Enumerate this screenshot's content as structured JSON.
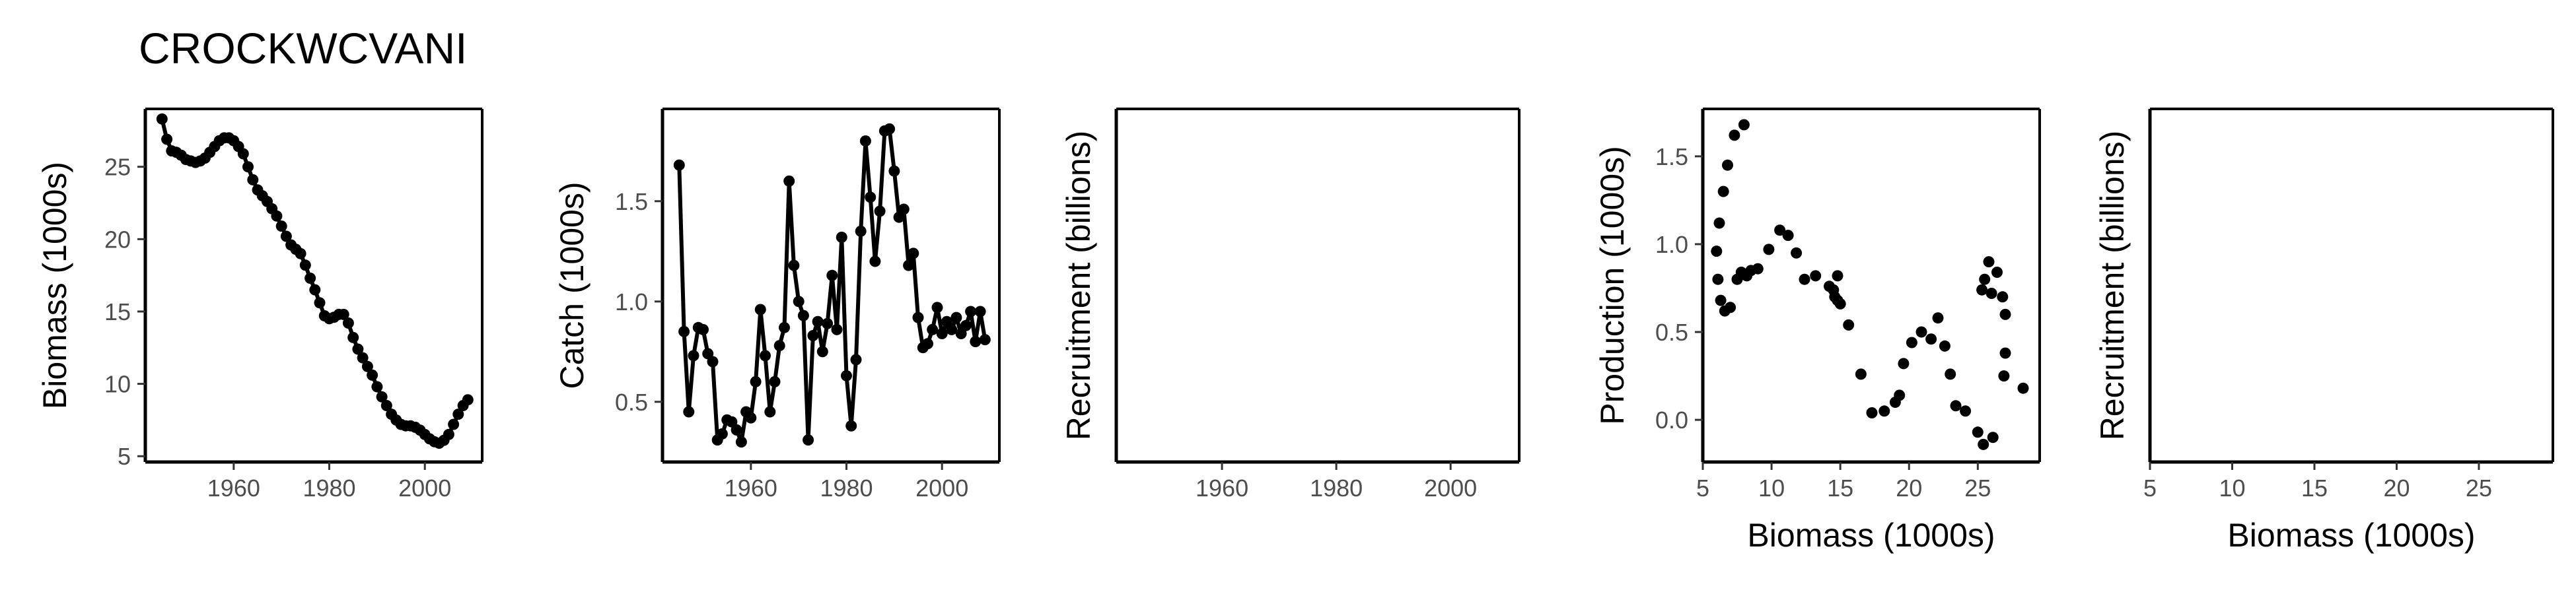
{
  "page_title": "CROCKWCVANI",
  "chart_data": [
    {
      "type": "line",
      "ylabel": "Biomass (1000s)",
      "xlabel": "",
      "xlim": [
        1941.5,
        2012
      ],
      "ylim": [
        4.6,
        29
      ],
      "x_ticks": [
        1960,
        1980,
        2000
      ],
      "y_ticks": [
        5,
        10,
        15,
        20,
        25
      ],
      "markers": true,
      "series": [
        {
          "x": [
            1945,
            1946,
            1947,
            1948,
            1949,
            1950,
            1951,
            1952,
            1953,
            1954,
            1955,
            1956,
            1957,
            1958,
            1959,
            1960,
            1961,
            1962,
            1963,
            1964,
            1965,
            1966,
            1967,
            1968,
            1969,
            1970,
            1971,
            1972,
            1973,
            1974,
            1975,
            1976,
            1977,
            1978,
            1979,
            1980,
            1981,
            1982,
            1983,
            1984,
            1985,
            1986,
            1987,
            1988,
            1989,
            1990,
            1991,
            1992,
            1993,
            1994,
            1995,
            1996,
            1997,
            1998,
            1999,
            2000,
            2001,
            2002,
            2003,
            2004,
            2005,
            2006,
            2007,
            2008,
            2009
          ],
          "y": [
            28.3,
            26.9,
            26.1,
            26.0,
            25.8,
            25.5,
            25.4,
            25.3,
            25.4,
            25.6,
            26.0,
            26.4,
            26.8,
            27.0,
            27.0,
            26.8,
            26.4,
            25.9,
            25.0,
            24.1,
            23.4,
            23.0,
            22.6,
            22.1,
            21.6,
            20.9,
            20.2,
            19.6,
            19.3,
            19.0,
            18.2,
            17.3,
            16.5,
            15.6,
            14.7,
            14.5,
            14.6,
            14.8,
            14.8,
            14.2,
            13.2,
            12.4,
            11.8,
            11.2,
            10.6,
            9.8,
            9.1,
            8.5,
            7.9,
            7.5,
            7.2,
            7.1,
            7.1,
            7.0,
            6.8,
            6.5,
            6.2,
            6.0,
            5.9,
            6.1,
            6.5,
            7.2,
            7.9,
            8.5,
            8.9
          ]
        }
      ]
    },
    {
      "type": "line",
      "ylabel": "Catch (1000s)",
      "xlabel": "",
      "xlim": [
        1941.5,
        2012
      ],
      "ylim": [
        0.2,
        1.96
      ],
      "x_ticks": [
        1960,
        1980,
        2000
      ],
      "y_ticks": [
        0.5,
        1.0,
        1.5
      ],
      "y_tick_labels": [
        "0.5",
        "1.0",
        "1.5"
      ],
      "markers": true,
      "series": [
        {
          "x": [
            1945,
            1946,
            1947,
            1948,
            1949,
            1950,
            1951,
            1952,
            1953,
            1954,
            1955,
            1956,
            1957,
            1958,
            1959,
            1960,
            1961,
            1962,
            1963,
            1964,
            1965,
            1966,
            1967,
            1968,
            1969,
            1970,
            1971,
            1972,
            1973,
            1974,
            1975,
            1976,
            1977,
            1978,
            1979,
            1980,
            1981,
            1982,
            1983,
            1984,
            1985,
            1986,
            1987,
            1988,
            1989,
            1990,
            1991,
            1992,
            1993,
            1994,
            1995,
            1996,
            1997,
            1998,
            1999,
            2000,
            2001,
            2002,
            2003,
            2004,
            2005,
            2006,
            2007,
            2008,
            2009
          ],
          "y": [
            1.68,
            0.85,
            0.45,
            0.73,
            0.87,
            0.86,
            0.74,
            0.7,
            0.31,
            0.34,
            0.41,
            0.4,
            0.36,
            0.3,
            0.45,
            0.42,
            0.6,
            0.96,
            0.73,
            0.45,
            0.6,
            0.78,
            0.87,
            1.6,
            1.18,
            1.0,
            0.93,
            0.31,
            0.83,
            0.9,
            0.75,
            0.89,
            1.13,
            0.86,
            1.32,
            0.63,
            0.38,
            0.71,
            1.35,
            1.8,
            1.52,
            1.2,
            1.45,
            1.85,
            1.86,
            1.65,
            1.42,
            1.46,
            1.18,
            1.24,
            0.92,
            0.77,
            0.79,
            0.86,
            0.97,
            0.84,
            0.9,
            0.86,
            0.92,
            0.84,
            0.88,
            0.95,
            0.8,
            0.95,
            0.81
          ]
        }
      ]
    },
    {
      "type": "line",
      "ylabel": "Recruitment (billions)",
      "xlabel": "",
      "xlim": [
        1941.5,
        2012
      ],
      "x_ticks": [
        1960,
        1980,
        2000
      ],
      "y_ticks": [],
      "series": []
    },
    {
      "type": "scatter",
      "ylabel": "Production (1000s)",
      "xlabel": "Biomass (1000s)",
      "xlim": [
        5,
        29.5
      ],
      "ylim": [
        -0.24,
        1.77
      ],
      "x_ticks": [
        5,
        10,
        15,
        20,
        25
      ],
      "y_ticks": [
        0.0,
        0.5,
        1.0,
        1.5
      ],
      "y_tick_labels": [
        "0.0",
        "0.5",
        "1.0",
        "1.5"
      ],
      "series": [
        {
          "x": [
            6.0,
            6.1,
            6.2,
            6.3,
            6.5,
            6.6,
            6.8,
            7.0,
            7.3,
            7.5,
            7.8,
            8.0,
            8.2,
            8.5,
            9.0,
            9.8,
            10.6,
            11.2,
            11.8,
            12.4,
            13.2,
            14.2,
            14.5,
            14.6,
            14.8,
            14.8,
            15.0,
            15.6,
            16.5,
            17.3,
            18.2,
            19.0,
            19.3,
            19.6,
            20.2,
            20.9,
            21.6,
            22.1,
            22.6,
            23.0,
            23.4,
            24.1,
            25.0,
            25.4,
            25.3,
            25.5,
            25.8,
            26.0,
            26.1,
            26.4,
            26.8,
            26.9,
            27.0,
            27.0,
            28.3
          ],
          "y": [
            0.96,
            0.8,
            1.12,
            0.68,
            1.3,
            0.62,
            1.45,
            0.64,
            1.62,
            0.8,
            0.84,
            1.68,
            0.82,
            0.85,
            0.86,
            0.97,
            1.08,
            1.05,
            0.95,
            0.8,
            0.82,
            0.76,
            0.74,
            0.7,
            0.68,
            0.82,
            0.66,
            0.54,
            0.26,
            0.04,
            0.05,
            0.1,
            0.14,
            0.32,
            0.44,
            0.5,
            0.46,
            0.58,
            0.42,
            0.26,
            0.08,
            0.05,
            -0.07,
            -0.14,
            0.74,
            0.8,
            0.9,
            0.72,
            -0.1,
            0.84,
            0.7,
            0.25,
            0.6,
            0.38,
            0.18
          ]
        }
      ]
    },
    {
      "type": "scatter",
      "ylabel": "Recruitment (billions)",
      "xlabel": "Biomass (1000s)",
      "xlim": [
        5,
        29.5
      ],
      "x_ticks": [
        5,
        10,
        15,
        20,
        25
      ],
      "y_ticks": [],
      "series": []
    }
  ]
}
